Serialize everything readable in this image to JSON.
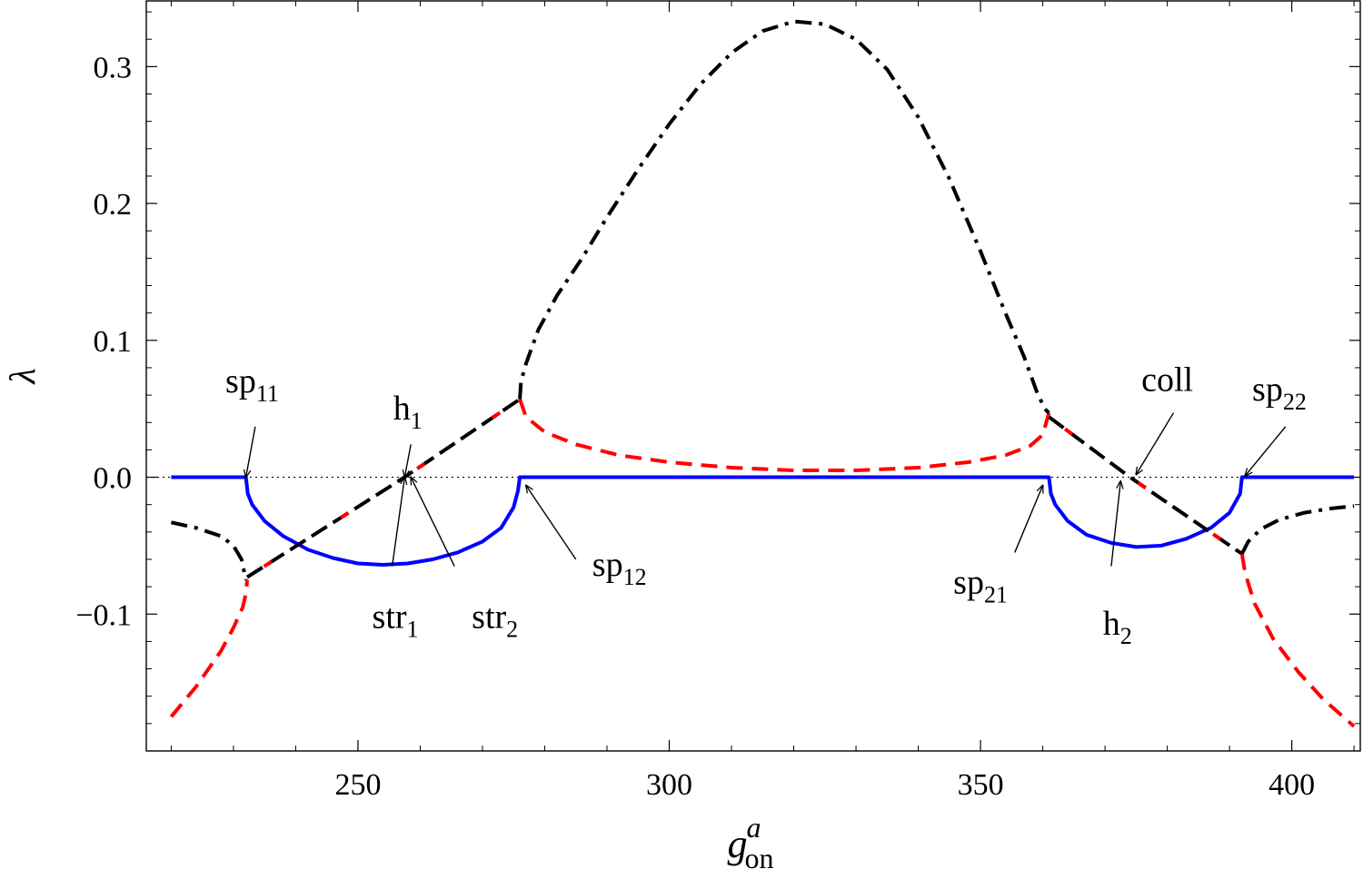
{
  "chart_data": {
    "type": "line",
    "title": "",
    "xlabel": {
      "base": "g",
      "sup": "a",
      "sub": "on"
    },
    "ylabel": "λ",
    "xlim": [
      216,
      411
    ],
    "ylim": [
      -0.2,
      0.348
    ],
    "xticks": [
      250,
      300,
      350,
      400
    ],
    "xtick_labels": [
      "250",
      "300",
      "350",
      "400"
    ],
    "yticks": [
      -0.1,
      0.0,
      0.1,
      0.2,
      0.3
    ],
    "ytick_labels": [
      "−0.1",
      "0.0",
      "0.1",
      "0.2",
      "0.3"
    ],
    "grid": false,
    "legend": "none",
    "colors": {
      "blue": "#0000ff",
      "red": "#ff0000",
      "black": "#000000"
    },
    "series": [
      {
        "color": "#0000ff",
        "style": "solid",
        "points": [
          [
            220,
            0
          ],
          [
            232,
            0
          ],
          [
            232.3,
            -0.012
          ],
          [
            233,
            -0.02
          ],
          [
            235,
            -0.032
          ],
          [
            238,
            -0.043
          ],
          [
            242,
            -0.053
          ],
          [
            246,
            -0.059
          ],
          [
            250,
            -0.063
          ],
          [
            254,
            -0.064
          ],
          [
            258,
            -0.063
          ],
          [
            262,
            -0.06
          ],
          [
            266,
            -0.055
          ],
          [
            270,
            -0.047
          ],
          [
            273,
            -0.037
          ],
          [
            275,
            -0.022
          ],
          [
            275.7,
            -0.01
          ],
          [
            276,
            0
          ],
          [
            361,
            0
          ],
          [
            361.3,
            -0.012
          ],
          [
            362,
            -0.02
          ],
          [
            364,
            -0.032
          ],
          [
            367,
            -0.042
          ],
          [
            371,
            -0.048
          ],
          [
            375,
            -0.051
          ],
          [
            379,
            -0.05
          ],
          [
            383,
            -0.045
          ],
          [
            387,
            -0.037
          ],
          [
            390,
            -0.026
          ],
          [
            391.7,
            -0.012
          ],
          [
            392,
            0
          ],
          [
            410,
            0
          ]
        ]
      },
      {
        "color": "#ff0000",
        "style": "dashed",
        "points": [
          [
            220,
            -0.175
          ],
          [
            224,
            -0.153
          ],
          [
            228,
            -0.127
          ],
          [
            230,
            -0.11
          ],
          [
            231.5,
            -0.095
          ],
          [
            232,
            -0.085
          ],
          [
            232.2,
            -0.075
          ]
        ]
      },
      {
        "color": "#000000",
        "style": "dashdot",
        "points": [
          [
            220,
            -0.033
          ],
          [
            224,
            -0.037
          ],
          [
            228,
            -0.043
          ],
          [
            230,
            -0.05
          ],
          [
            231.3,
            -0.06
          ],
          [
            232,
            -0.075
          ]
        ]
      },
      {
        "color": "#000000",
        "style": "dashed-alt",
        "points": [
          [
            232.2,
            -0.073
          ],
          [
            257.5,
            0
          ],
          [
            276,
            0.057
          ]
        ]
      },
      {
        "color": "#ff0000",
        "style": "dashed",
        "points": [
          [
            276,
            0.057
          ],
          [
            277,
            0.044
          ],
          [
            280,
            0.033
          ],
          [
            285,
            0.024
          ],
          [
            292,
            0.016
          ],
          [
            300,
            0.011
          ],
          [
            310,
            0.007
          ],
          [
            320,
            0.005
          ],
          [
            330,
            0.005
          ],
          [
            340,
            0.007
          ],
          [
            348,
            0.011
          ],
          [
            354,
            0.016
          ],
          [
            358,
            0.023
          ],
          [
            360,
            0.031
          ],
          [
            361,
            0.047
          ]
        ]
      },
      {
        "color": "#000000",
        "style": "dashdot",
        "points": [
          [
            276,
            0.057
          ],
          [
            276.2,
            0.07
          ],
          [
            277,
            0.083
          ],
          [
            279,
            0.108
          ],
          [
            282,
            0.133
          ],
          [
            286,
            0.16
          ],
          [
            290,
            0.19
          ],
          [
            295,
            0.225
          ],
          [
            300,
            0.258
          ],
          [
            305,
            0.287
          ],
          [
            310,
            0.31
          ],
          [
            315,
            0.326
          ],
          [
            320,
            0.333
          ],
          [
            325,
            0.331
          ],
          [
            330,
            0.32
          ],
          [
            335,
            0.298
          ],
          [
            340,
            0.263
          ],
          [
            345,
            0.218
          ],
          [
            350,
            0.165
          ],
          [
            354,
            0.12
          ],
          [
            357,
            0.088
          ],
          [
            359,
            0.063
          ],
          [
            360.3,
            0.05
          ],
          [
            361,
            0.047
          ]
        ]
      },
      {
        "color": "#000000",
        "style": "dashed-alt",
        "points": [
          [
            361,
            0.044
          ],
          [
            374,
            0
          ],
          [
            392,
            -0.056
          ]
        ]
      },
      {
        "color": "#ff0000",
        "style": "dashed",
        "points": [
          [
            392,
            -0.056
          ],
          [
            392.5,
            -0.07
          ],
          [
            394,
            -0.092
          ],
          [
            397,
            -0.118
          ],
          [
            401,
            -0.142
          ],
          [
            405,
            -0.162
          ],
          [
            410,
            -0.182
          ]
        ]
      },
      {
        "color": "#000000",
        "style": "dashdot",
        "points": [
          [
            392,
            -0.056
          ],
          [
            393,
            -0.047
          ],
          [
            395,
            -0.038
          ],
          [
            398,
            -0.031
          ],
          [
            402,
            -0.026
          ],
          [
            406,
            -0.023
          ],
          [
            410,
            -0.021
          ]
        ]
      }
    ],
    "annotations": [
      {
        "base": "sp",
        "sub": "11",
        "text_at": [
          233,
          0.062
        ],
        "arrow_from": [
          233.5,
          0.037
        ],
        "arrow_to": [
          232,
          0
        ],
        "anchor": "middle"
      },
      {
        "base": "h",
        "sub": "1",
        "text_at": [
          258,
          0.042
        ],
        "arrow_from": [
          258.5,
          0.024
        ],
        "arrow_to": [
          257.5,
          0
        ],
        "anchor": "middle"
      },
      {
        "base": "str",
        "sub": "1",
        "text_at": [
          256,
          -0.11
        ],
        "arrow_from": [
          255.5,
          -0.065
        ],
        "arrow_to": [
          257.5,
          0
        ],
        "anchor": "middle"
      },
      {
        "base": "str",
        "sub": "2",
        "text_at": [
          272,
          -0.11
        ],
        "arrow_from": [
          265.5,
          -0.065
        ],
        "arrow_to": [
          258.5,
          0
        ],
        "anchor": "middle"
      },
      {
        "base": "sp",
        "sub": "12",
        "text_at": [
          292,
          -0.072
        ],
        "arrow_from": [
          285,
          -0.06
        ],
        "arrow_to": [
          277,
          -0.006
        ],
        "anchor": "middle"
      },
      {
        "base": "sp",
        "sub": "21",
        "text_at": [
          350,
          -0.085
        ],
        "arrow_from": [
          355.5,
          -0.055
        ],
        "arrow_to": [
          360,
          -0.006
        ],
        "anchor": "middle"
      },
      {
        "base": "h",
        "sub": "2",
        "text_at": [
          372,
          -0.115
        ],
        "arrow_from": [
          371,
          -0.065
        ],
        "arrow_to": [
          372.5,
          -0.003
        ],
        "anchor": "middle"
      },
      {
        "base": "coll",
        "sub": "",
        "text_at": [
          380,
          0.063
        ],
        "arrow_from": [
          381,
          0.047
        ],
        "arrow_to": [
          375,
          0.002
        ],
        "anchor": "middle"
      },
      {
        "base": "sp",
        "sub": "22",
        "text_at": [
          398,
          0.056
        ],
        "arrow_from": [
          399,
          0.037
        ],
        "arrow_to": [
          392.5,
          0.001
        ],
        "anchor": "middle"
      }
    ]
  }
}
